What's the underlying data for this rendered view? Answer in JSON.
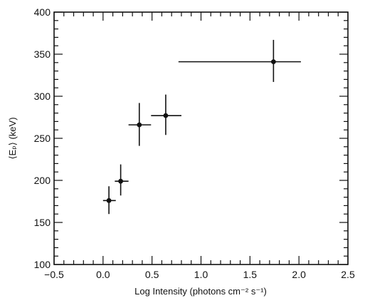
{
  "chart_data": {
    "type": "scatter",
    "xlabel": "Log Intensity (photons cm⁻² s⁻¹)",
    "ylabel": "⟨Eₚ⟩ (keV)",
    "xlim": [
      -0.5,
      2.5
    ],
    "ylim": [
      100,
      400
    ],
    "x_ticks": [
      -0.5,
      0.0,
      0.5,
      1.0,
      1.5,
      2.0,
      2.5
    ],
    "x_tick_labels": [
      "−0.5",
      "0.0",
      "0.5",
      "1.0",
      "1.5",
      "2.0",
      "2.5"
    ],
    "y_ticks": [
      100,
      150,
      200,
      250,
      300,
      350,
      400
    ],
    "y_tick_labels": [
      "100",
      "150",
      "200",
      "250",
      "300",
      "350",
      "400"
    ],
    "grid": false,
    "points": [
      {
        "x": 0.06,
        "y": 176,
        "x_lo": 0.0,
        "x_hi": 0.13,
        "y_lo": 160,
        "y_hi": 193
      },
      {
        "x": 0.18,
        "y": 199,
        "x_lo": 0.12,
        "x_hi": 0.26,
        "y_lo": 182,
        "y_hi": 219
      },
      {
        "x": 0.37,
        "y": 266,
        "x_lo": 0.26,
        "x_hi": 0.49,
        "y_lo": 241,
        "y_hi": 292
      },
      {
        "x": 0.64,
        "y": 277,
        "x_lo": 0.49,
        "x_hi": 0.8,
        "y_lo": 254,
        "y_hi": 302
      },
      {
        "x": 1.74,
        "y": 341,
        "x_lo": 0.77,
        "x_hi": 2.02,
        "y_lo": 317,
        "y_hi": 367
      }
    ]
  }
}
